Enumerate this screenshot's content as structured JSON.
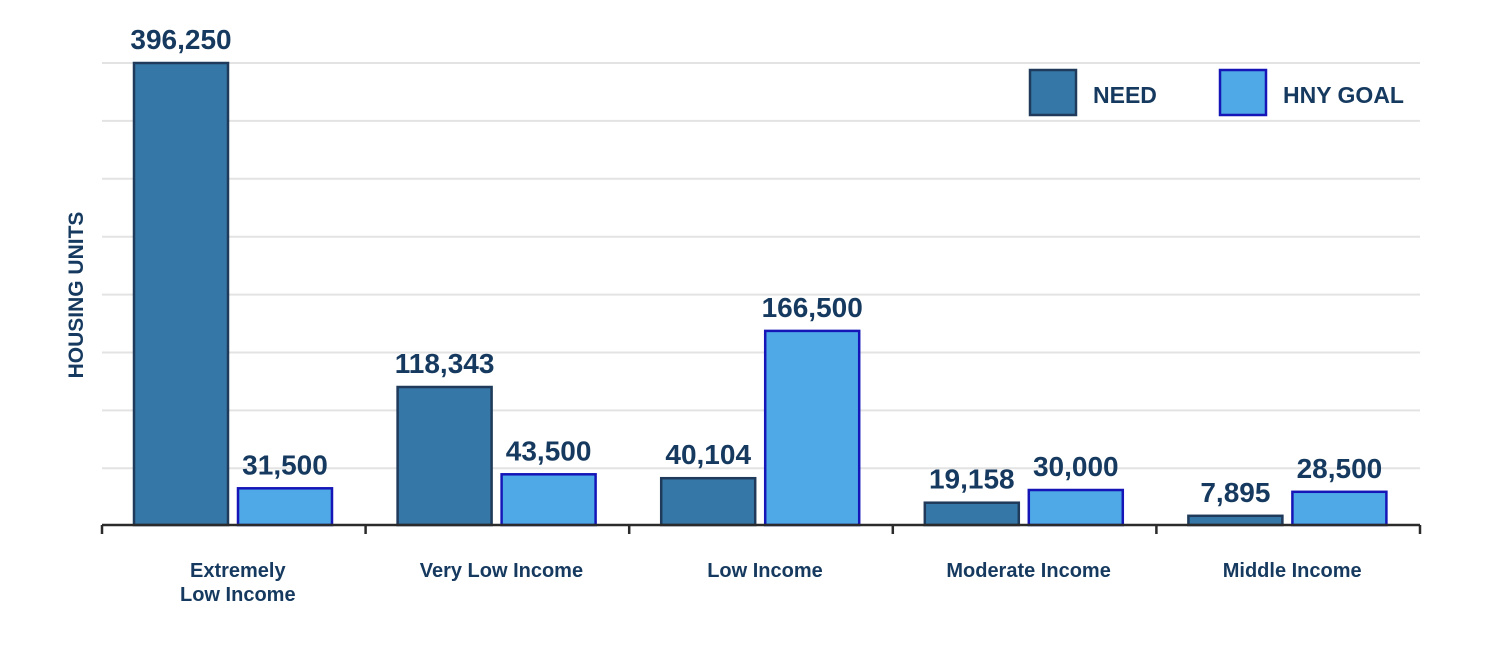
{
  "chart_data": {
    "type": "bar",
    "title": "",
    "xlabel": "",
    "ylabel": "HOUSING UNITS",
    "ylim": [
      0,
      400000
    ],
    "grid": true,
    "legend_position": "top-right",
    "categories": [
      [
        "Extremely",
        "Low Income"
      ],
      [
        "Very Low Income"
      ],
      [
        "Low Income"
      ],
      [
        "Moderate Income"
      ],
      [
        "Middle Income"
      ]
    ],
    "series": [
      {
        "name": "NEED",
        "color": "#3577a6",
        "border": "#1f3a5a",
        "values": [
          396250,
          118343,
          40104,
          19158,
          7895
        ],
        "labels": [
          "396,250",
          "118,343",
          "40,104",
          "19,158",
          "7,895"
        ]
      },
      {
        "name": "HNY GOAL",
        "color": "#4ea9e6",
        "border": "#1616b8",
        "values": [
          31500,
          43500,
          166500,
          30000,
          28500
        ],
        "labels": [
          "31,500",
          "43,500",
          "166,500",
          "30,000",
          "28,500"
        ]
      }
    ]
  }
}
